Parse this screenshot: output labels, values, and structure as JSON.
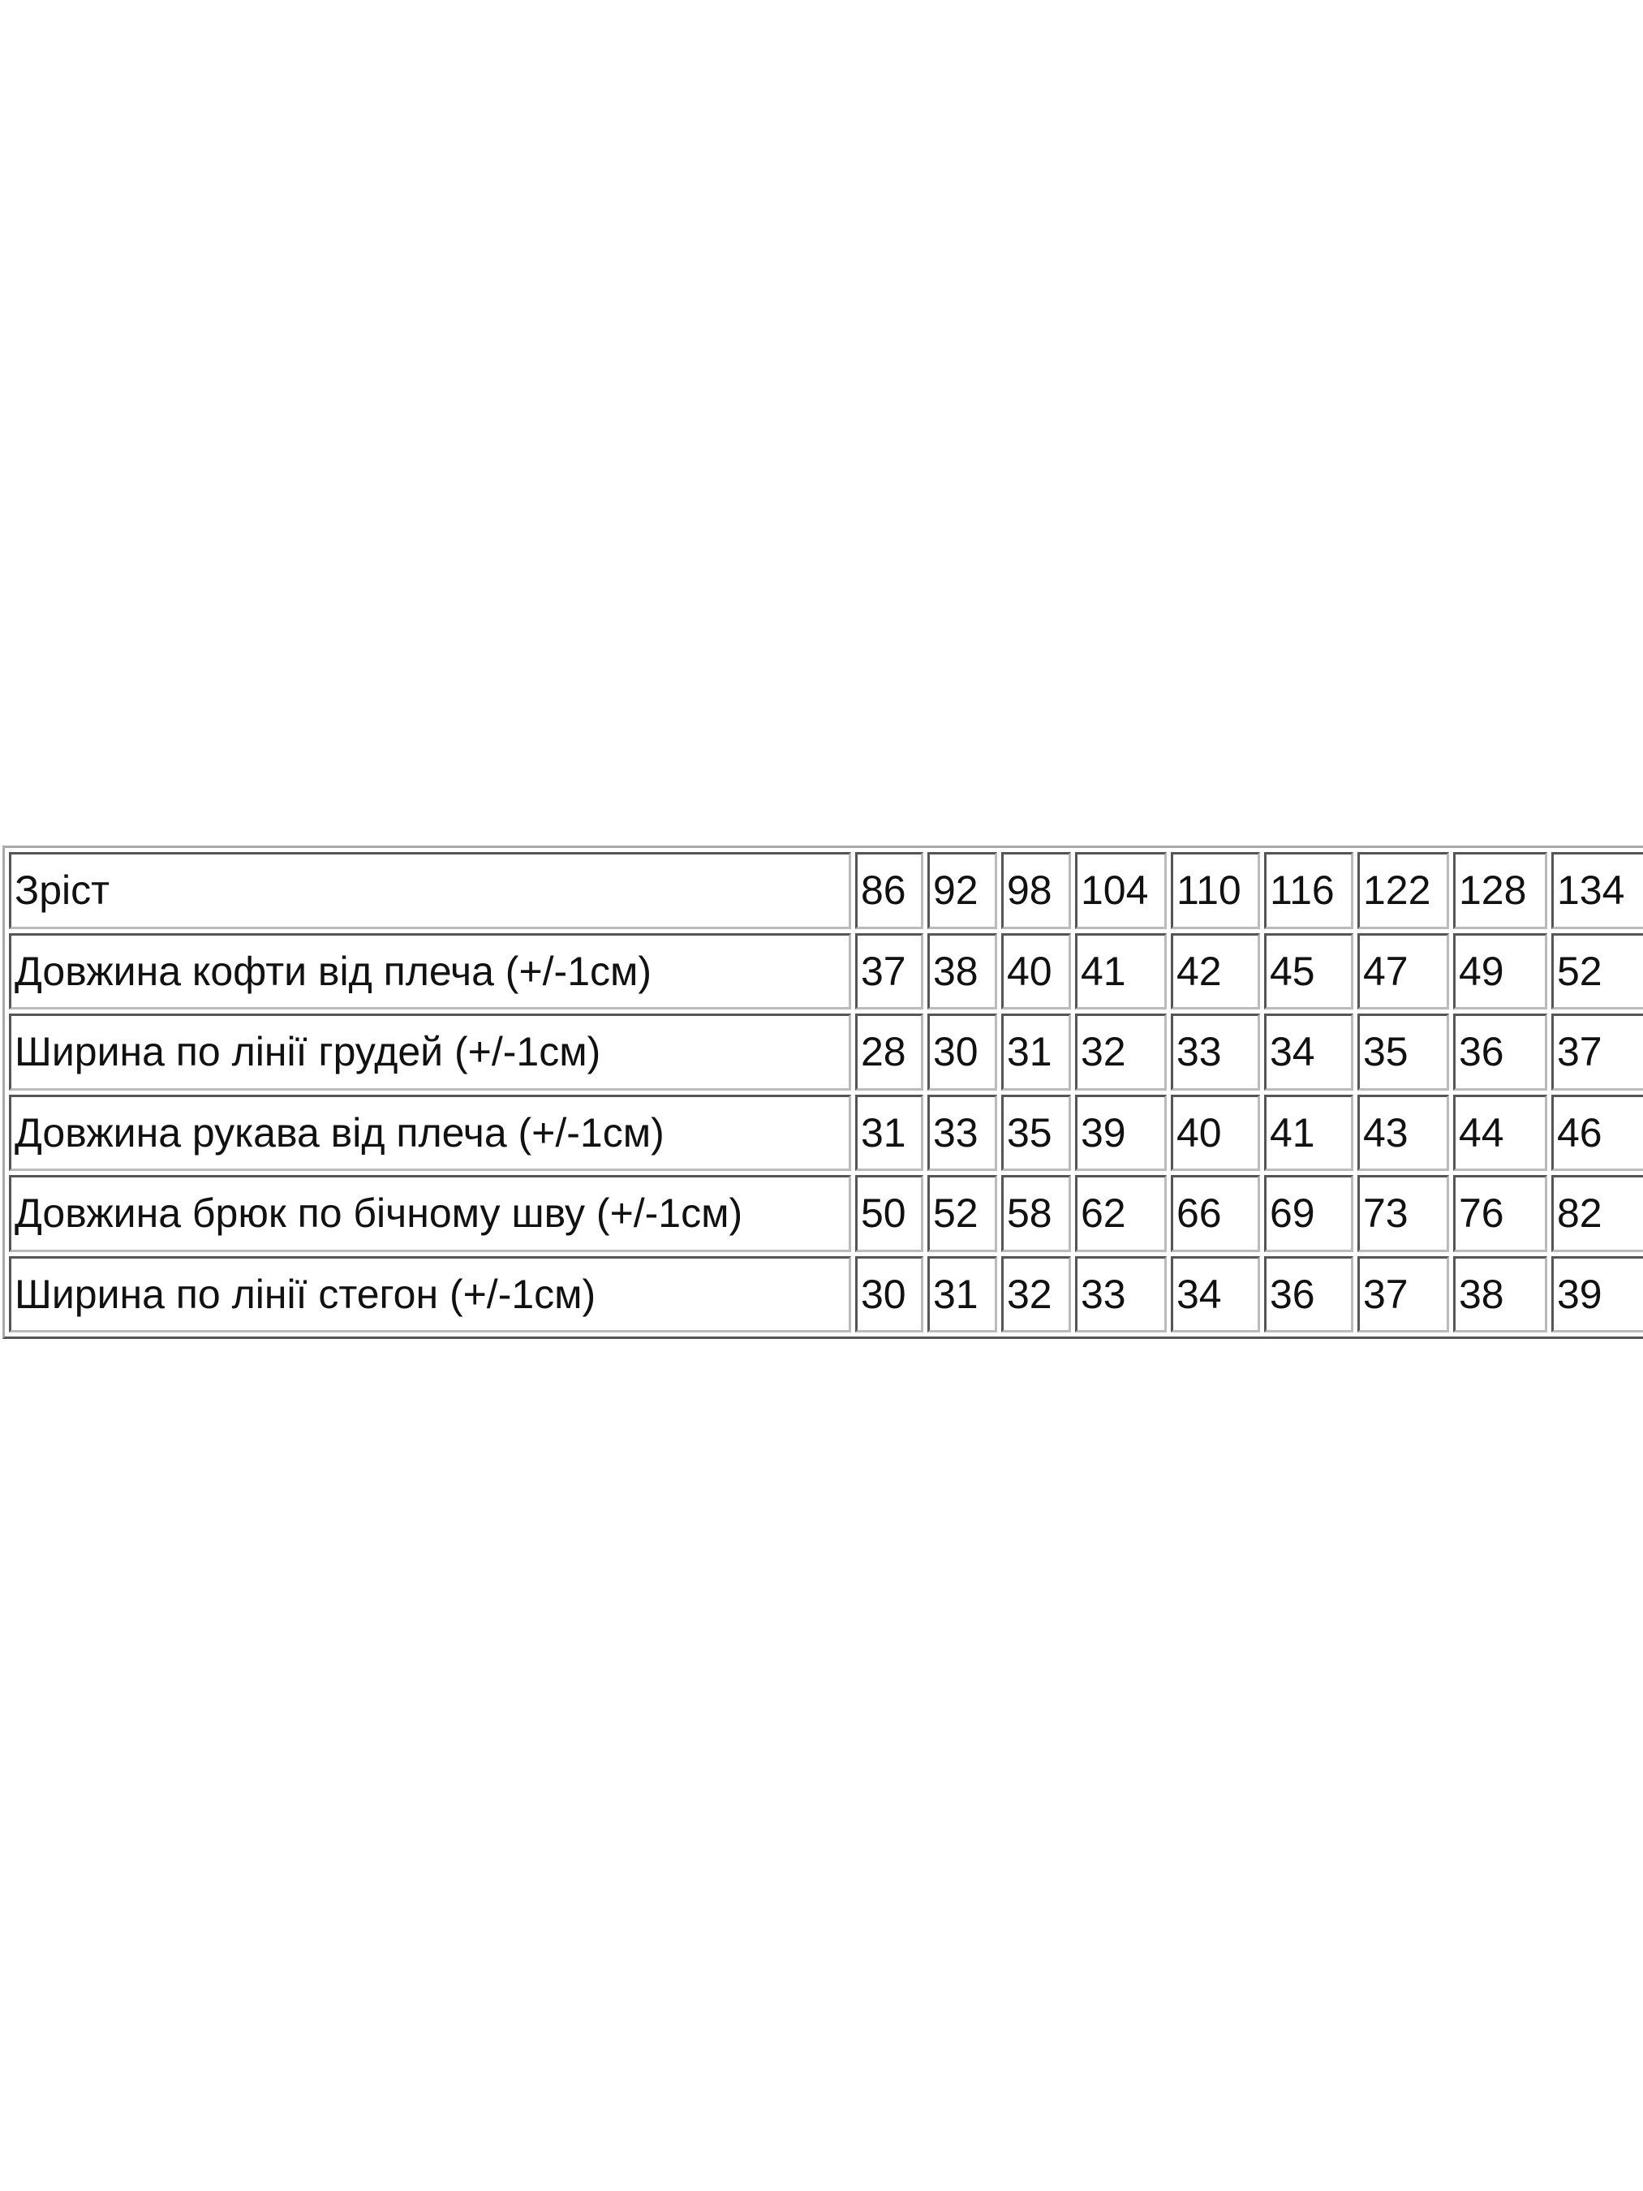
{
  "table": {
    "rows": [
      [
        "Зріст",
        86,
        92,
        98,
        104,
        110,
        116,
        122,
        128,
        134
      ],
      [
        "Довжина кофти від плеча (+/-1см)",
        37,
        38,
        40,
        41,
        42,
        45,
        47,
        49,
        52
      ],
      [
        "Ширина по лінії грудей (+/-1см)",
        28,
        30,
        31,
        32,
        33,
        34,
        35,
        36,
        37
      ],
      [
        "Довжина рукава від плеча (+/-1см)",
        31,
        33,
        35,
        39,
        40,
        41,
        43,
        44,
        46
      ],
      [
        "Довжина брюк по бічному шву (+/-1см)",
        50,
        52,
        58,
        62,
        66,
        69,
        73,
        76,
        82
      ],
      [
        "Ширина по лінії стегон (+/-1см)",
        30,
        31,
        32,
        33,
        34,
        36,
        37,
        38,
        39
      ]
    ]
  }
}
